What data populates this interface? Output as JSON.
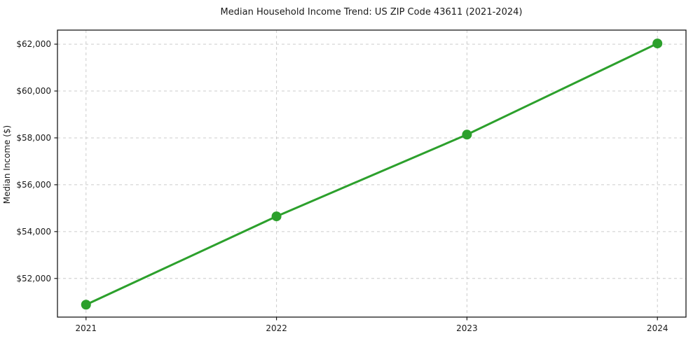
{
  "chart_data": {
    "type": "line",
    "title": "Median Household Income Trend: US ZIP Code 43611 (2021-2024)",
    "xlabel": "",
    "ylabel": "Median Income ($)",
    "x": [
      2021,
      2022,
      2023,
      2024
    ],
    "x_tick_labels": [
      "2021",
      "2022",
      "2023",
      "2024"
    ],
    "series": [
      {
        "name": "median-household-income",
        "values": [
          50880,
          54650,
          58140,
          62030
        ],
        "color": "#2ca02c",
        "marker": "circle"
      }
    ],
    "yticks": [
      52000,
      54000,
      56000,
      58000,
      60000,
      62000
    ],
    "y_tick_labels": [
      "$52,000",
      "$54,000",
      "$56,000",
      "$58,000",
      "$60,000",
      "$62,000"
    ],
    "xlim": [
      2020.85,
      2024.15
    ],
    "ylim": [
      50350,
      62600
    ],
    "grid": true,
    "grid_style": "dashed",
    "grid_color": "#cccccc",
    "legend": "none",
    "background_color": "#ffffff",
    "spine_color": "#1a1a1a"
  }
}
